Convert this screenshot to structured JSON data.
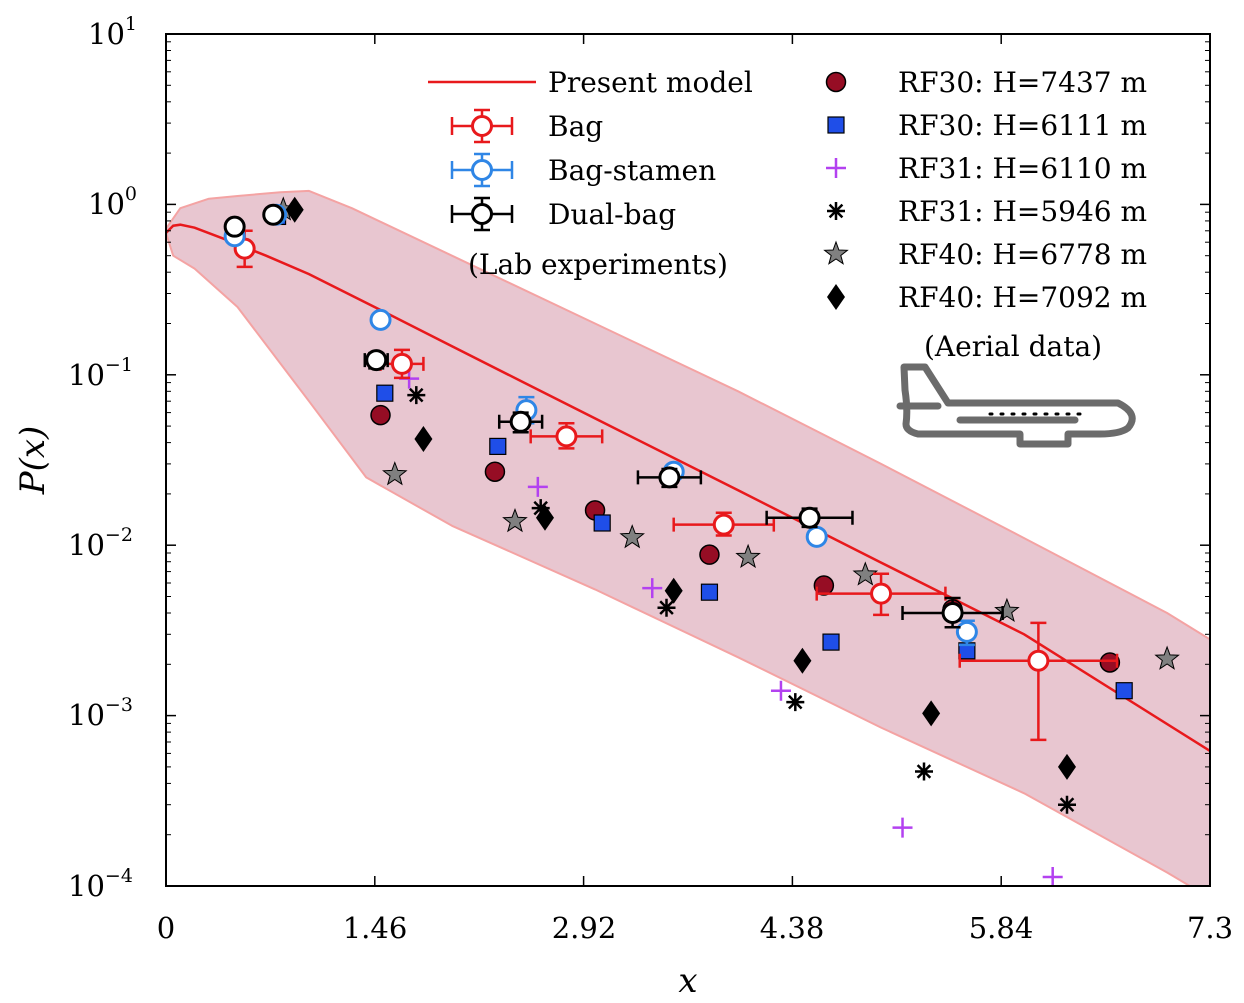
{
  "chart_data": {
    "type": "scatter",
    "title": "",
    "xlabel": "x",
    "ylabel": "P(x)",
    "x_scale": "linear",
    "y_scale": "log",
    "xlim": [
      0,
      7.3
    ],
    "ylim": [
      0.0001,
      10
    ],
    "x_ticks": [
      "0",
      "1.46",
      "2.92",
      "4.38",
      "5.84",
      "7.3"
    ],
    "y_ticks": [
      {
        "base": "10",
        "exp": "1"
      },
      {
        "base": "10",
        "exp": "0"
      },
      {
        "base": "10",
        "exp": "−1"
      },
      {
        "base": "10",
        "exp": "−2"
      },
      {
        "base": "10",
        "exp": "−3"
      },
      {
        "base": "10",
        "exp": "−4"
      }
    ],
    "colors": {
      "model": "#e8191c",
      "band": "#e8c6d0",
      "band_edge": "#f4a3a3",
      "bag": "#e8191c",
      "bag_stamen": "#2f86e6",
      "dual_bag": "#000000",
      "rf30_circle": "#960d24",
      "rf30_square": "#1f4ee8",
      "rf31_plus": "#b341f0",
      "rf31_star": "#000000",
      "rf40_star": "#808080",
      "rf40_diamond": "#000000",
      "airplane": "#6b6b6b"
    },
    "legend": {
      "model": "Present model",
      "lab": [
        "Bag",
        "Bag-stamen",
        "Dual-bag"
      ],
      "lab_caption": "(Lab experiments)",
      "aerial": [
        "RF30: H=7437 m",
        "RF30: H=6111 m",
        "RF31: H=6110 m",
        "RF31: H=5946 m",
        "RF40: H=6778 m",
        "RF40: H=7092 m"
      ],
      "aerial_caption": "(Aerial data)"
    },
    "model_curve": {
      "name": "Present model",
      "x": [
        0.0,
        0.05,
        0.1,
        0.2,
        0.4,
        0.7,
        1.0,
        1.5,
        2.0,
        3.0,
        4.0,
        5.0,
        6.0,
        7.3
      ],
      "y": [
        0.68,
        0.75,
        0.76,
        0.73,
        0.63,
        0.5,
        0.39,
        0.24,
        0.147,
        0.0555,
        0.021,
        0.0079,
        0.003,
        0.00062
      ]
    },
    "band": {
      "upper": {
        "x": [
          0.0,
          0.1,
          0.3,
          0.5,
          0.8,
          1.0,
          1.3,
          2.0,
          3.0,
          4.0,
          5.0,
          6.0,
          7.0,
          7.3
        ],
        "y": [
          0.72,
          0.95,
          1.08,
          1.12,
          1.18,
          1.2,
          0.95,
          0.5,
          0.2,
          0.08,
          0.03,
          0.011,
          0.004,
          0.0028
        ]
      },
      "lower": {
        "x": [
          7.3,
          7.0,
          6.0,
          5.0,
          4.0,
          3.0,
          2.0,
          1.4,
          1.0,
          0.5,
          0.2,
          0.05,
          0.0
        ],
        "y": [
          8.5e-05,
          0.00012,
          0.00035,
          0.00085,
          0.0022,
          0.0055,
          0.013,
          0.025,
          0.07,
          0.25,
          0.42,
          0.5,
          0.68
        ]
      }
    },
    "series": [
      {
        "name": "Bag",
        "marker": "open-circle",
        "color_key": "bag",
        "points": [
          {
            "x": 0.55,
            "y": 0.55,
            "ylo": 0.43,
            "yhi": 0.7
          },
          {
            "x": 1.65,
            "y": 0.116,
            "ylo": 0.096,
            "yhi": 0.14,
            "xerr": 0.15
          },
          {
            "x": 2.8,
            "y": 0.0435,
            "ylo": 0.037,
            "yhi": 0.052,
            "xerr": 0.25
          },
          {
            "x": 3.9,
            "y": 0.0132,
            "ylo": 0.0114,
            "yhi": 0.0155,
            "xerr": 0.35
          },
          {
            "x": 5.0,
            "y": 0.0052,
            "ylo": 0.0039,
            "yhi": 0.0068,
            "xerr": 0.45
          },
          {
            "x": 6.1,
            "y": 0.0021,
            "ylo": 0.00072,
            "yhi": 0.0035,
            "xerr": 0.55
          }
        ]
      },
      {
        "name": "Bag-stamen",
        "marker": "open-circle",
        "color_key": "bag_stamen",
        "points": [
          {
            "x": 0.48,
            "y": 0.65,
            "ylo": 0.6,
            "yhi": 0.7
          },
          {
            "x": 0.77,
            "y": 0.87,
            "ylo": 0.82,
            "yhi": 0.92
          },
          {
            "x": 1.5,
            "y": 0.21,
            "ylo": 0.2,
            "yhi": 0.22
          },
          {
            "x": 2.52,
            "y": 0.062,
            "ylo": 0.052,
            "yhi": 0.074
          },
          {
            "x": 3.55,
            "y": 0.027,
            "ylo": 0.025,
            "yhi": 0.029
          },
          {
            "x": 4.55,
            "y": 0.0112,
            "ylo": 0.0104,
            "yhi": 0.0121
          },
          {
            "x": 5.6,
            "y": 0.0031,
            "ylo": 0.0026,
            "yhi": 0.0036
          }
        ]
      },
      {
        "name": "Dual-bag",
        "marker": "open-circle",
        "color_key": "dual_bag",
        "points": [
          {
            "x": 0.48,
            "y": 0.74,
            "ylo": 0.68,
            "yhi": 0.8,
            "xerr": 0.03
          },
          {
            "x": 0.75,
            "y": 0.87,
            "ylo": 0.84,
            "yhi": 0.9
          },
          {
            "x": 1.47,
            "y": 0.122,
            "ylo": 0.109,
            "yhi": 0.134,
            "xerr": 0.08
          },
          {
            "x": 2.48,
            "y": 0.053,
            "ylo": 0.046,
            "yhi": 0.06,
            "xerr": 0.15
          },
          {
            "x": 3.52,
            "y": 0.025,
            "ylo": 0.022,
            "yhi": 0.028,
            "xerr": 0.22
          },
          {
            "x": 4.5,
            "y": 0.0145,
            "ylo": 0.0128,
            "yhi": 0.0164,
            "xerr": 0.3
          },
          {
            "x": 5.5,
            "y": 0.004,
            "ylo": 0.0033,
            "yhi": 0.0049,
            "xerr": 0.35
          }
        ]
      },
      {
        "name": "RF30: H=7437 m",
        "marker": "circle",
        "color_key": "rf30_circle",
        "points": [
          {
            "x": 1.5,
            "y": 0.058
          },
          {
            "x": 2.3,
            "y": 0.027
          },
          {
            "x": 3.0,
            "y": 0.016
          },
          {
            "x": 3.8,
            "y": 0.0088
          },
          {
            "x": 4.6,
            "y": 0.0058
          },
          {
            "x": 5.5,
            "y": 0.0042
          },
          {
            "x": 6.6,
            "y": 0.00205
          }
        ]
      },
      {
        "name": "RF30: H=6111 m",
        "marker": "square",
        "color_key": "rf30_square",
        "points": [
          {
            "x": 0.78,
            "y": 0.85
          },
          {
            "x": 1.53,
            "y": 0.078
          },
          {
            "x": 2.32,
            "y": 0.038
          },
          {
            "x": 3.05,
            "y": 0.0135
          },
          {
            "x": 3.8,
            "y": 0.0053
          },
          {
            "x": 4.65,
            "y": 0.0027
          },
          {
            "x": 5.6,
            "y": 0.0024
          },
          {
            "x": 6.7,
            "y": 0.0014
          }
        ]
      },
      {
        "name": "RF31: H=6110 m",
        "marker": "plus",
        "color_key": "rf31_plus",
        "points": [
          {
            "x": 1.7,
            "y": 0.095
          },
          {
            "x": 2.6,
            "y": 0.022
          },
          {
            "x": 3.4,
            "y": 0.0056
          },
          {
            "x": 4.3,
            "y": 0.0014
          },
          {
            "x": 5.15,
            "y": 0.00022
          },
          {
            "x": 6.2,
            "y": 0.000113
          }
        ]
      },
      {
        "name": "RF31: H=5946 m",
        "marker": "asterisk",
        "color_key": "rf31_star",
        "points": [
          {
            "x": 1.75,
            "y": 0.076
          },
          {
            "x": 2.62,
            "y": 0.0165
          },
          {
            "x": 3.5,
            "y": 0.0043
          },
          {
            "x": 4.4,
            "y": 0.0012
          },
          {
            "x": 5.3,
            "y": 0.00047
          },
          {
            "x": 6.3,
            "y": 0.0003
          }
        ]
      },
      {
        "name": "RF40: H=6778 m",
        "marker": "star",
        "color_key": "rf40_star",
        "points": [
          {
            "x": 0.82,
            "y": 0.93
          },
          {
            "x": 1.6,
            "y": 0.026
          },
          {
            "x": 2.44,
            "y": 0.0138
          },
          {
            "x": 3.26,
            "y": 0.0111
          },
          {
            "x": 4.07,
            "y": 0.0085
          },
          {
            "x": 4.89,
            "y": 0.0067
          },
          {
            "x": 5.88,
            "y": 0.0041
          },
          {
            "x": 7.0,
            "y": 0.00215
          }
        ]
      },
      {
        "name": "RF40: H=7092 m",
        "marker": "diamond",
        "color_key": "rf40_diamond",
        "points": [
          {
            "x": 0.9,
            "y": 0.93
          },
          {
            "x": 1.8,
            "y": 0.042
          },
          {
            "x": 2.65,
            "y": 0.0145
          },
          {
            "x": 3.55,
            "y": 0.0054
          },
          {
            "x": 4.45,
            "y": 0.0021
          },
          {
            "x": 5.35,
            "y": 0.00103
          },
          {
            "x": 6.3,
            "y": 0.0005
          }
        ]
      }
    ]
  }
}
